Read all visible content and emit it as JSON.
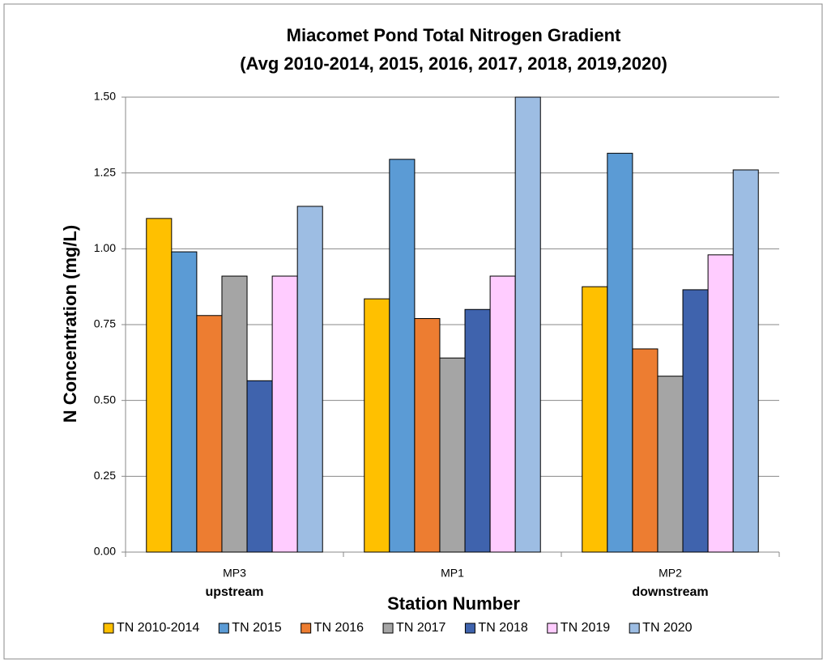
{
  "chart_data": {
    "type": "bar",
    "title": "Miacomet Pond Total Nitrogen Gradient",
    "subtitle": "(Avg 2010-2014, 2015, 2016, 2017, 2018, 2019,2020)",
    "x_label": "Station Number",
    "y_label": "N Concentration (mg/L)",
    "categories": [
      "MP3",
      "MP1",
      "MP2"
    ],
    "category_sublabels": [
      "upstream",
      null,
      "downstream"
    ],
    "series": [
      {
        "name": "TN 2010-2014",
        "color": "#ffc000",
        "values": [
          1.1,
          0.835,
          0.875
        ]
      },
      {
        "name": "TN 2015",
        "color": "#5b9bd5",
        "values": [
          0.99,
          1.295,
          1.315
        ]
      },
      {
        "name": "TN 2016",
        "color": "#ed7d31",
        "values": [
          0.78,
          0.77,
          0.67
        ]
      },
      {
        "name": "TN 2017",
        "color": "#a5a5a5",
        "values": [
          0.91,
          0.64,
          0.58
        ]
      },
      {
        "name": "TN 2018",
        "color": "#3f63ad",
        "values": [
          0.565,
          0.8,
          0.865
        ]
      },
      {
        "name": "TN 2019",
        "color": "#ffccff",
        "values": [
          0.91,
          0.91,
          0.98
        ]
      },
      {
        "name": "TN 2020",
        "color": "#9dbde3",
        "values": [
          1.14,
          1.5,
          1.26
        ]
      }
    ],
    "ylim": [
      0,
      1.5
    ],
    "yticks": [
      {
        "value": 0,
        "label": "0.00"
      },
      {
        "value": 0.25,
        "label": "0.25"
      },
      {
        "value": 0.5,
        "label": "0.50"
      },
      {
        "value": 0.75,
        "label": "0.75"
      },
      {
        "value": 1,
        "label": "1.00"
      },
      {
        "value": 1.25,
        "label": "1.25"
      },
      {
        "value": 1.5,
        "label": "1.50"
      }
    ],
    "grid": true,
    "legend": "bottom"
  }
}
